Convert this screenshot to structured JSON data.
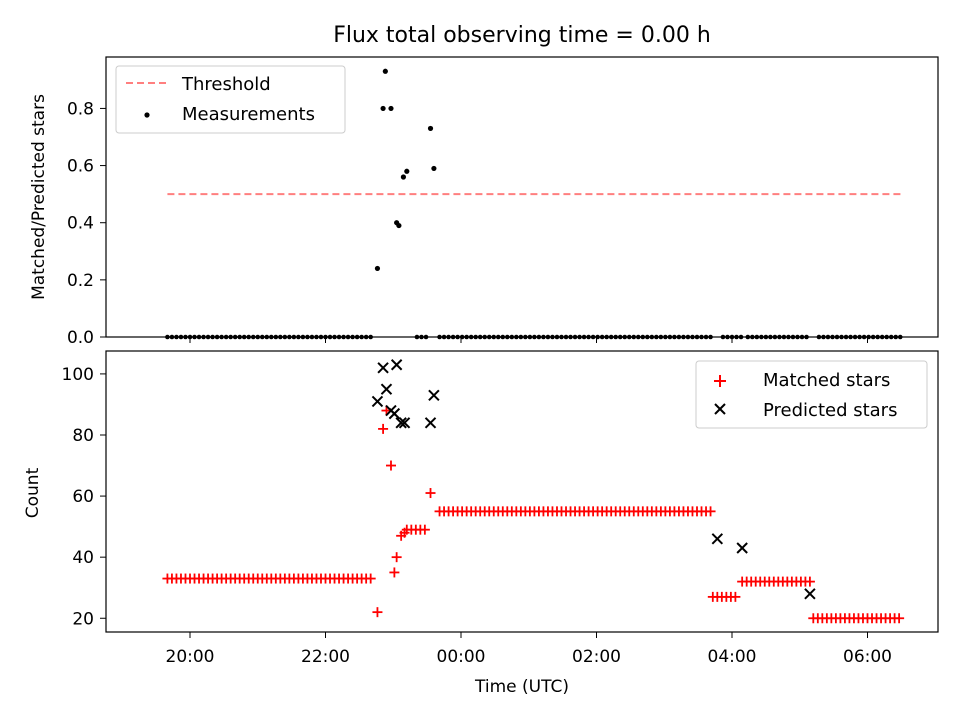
{
  "chart_data": [
    {
      "type": "scatter",
      "title": "Flux total observing time = 0.00 h",
      "xlabel": "",
      "ylabel": "Matched/Predicted stars",
      "ylim": [
        0,
        0.98
      ],
      "yticks": [
        "0.0",
        "0.2",
        "0.4",
        "0.6",
        "0.8"
      ],
      "ytick_values": [
        0,
        0.2,
        0.4,
        0.6,
        0.8
      ],
      "grid": false,
      "legend": "upper-left",
      "threshold": {
        "name": "Threshold",
        "y": 0.5,
        "color": "#ff7f7f",
        "x_range": [
          "19:40",
          "06:30"
        ]
      },
      "series": [
        {
          "name": "Measurements",
          "color": "#000000",
          "x": [
            "22:46",
            "22:51",
            "22:53",
            "22:58",
            "23:03",
            "23:05",
            "23:09",
            "23:12",
            "23:33",
            "23:36"
          ],
          "y": [
            0.24,
            0.8,
            0.93,
            0.8,
            0.4,
            0.39,
            0.56,
            0.58,
            0.73,
            0.59
          ]
        }
      ],
      "zero_segments": [
        [
          "19:40",
          "22:41"
        ],
        [
          "23:21",
          "23:29"
        ],
        [
          "23:41",
          "03:43"
        ],
        [
          "03:52",
          "04:09"
        ],
        [
          "04:14",
          "05:09"
        ],
        [
          "05:17",
          "06:30"
        ]
      ]
    },
    {
      "type": "scatter",
      "title": "",
      "xlabel": "Time (UTC)",
      "ylabel": "Count",
      "ylim": [
        15.5,
        107.5
      ],
      "yticks": [
        "20",
        "40",
        "60",
        "80",
        "100"
      ],
      "ytick_values": [
        20,
        40,
        60,
        80,
        100
      ],
      "xticks": [
        "20:00",
        "22:00",
        "00:00",
        "02:00",
        "04:00",
        "06:00"
      ],
      "xtick_times": [
        "20:00",
        "22:00",
        "24:00",
        "26:00",
        "28:00",
        "30:00"
      ],
      "grid": false,
      "legend": "upper-right",
      "series": [
        {
          "name": "Matched stars",
          "marker": "plus",
          "color": "#ff0000",
          "runs": [
            {
              "start": "19:40",
              "end": "22:41",
              "y": 33
            },
            {
              "start": "23:12",
              "end": "23:29",
              "y": 49
            },
            {
              "start": "23:41",
              "end": "03:43",
              "y": 55
            },
            {
              "start": "03:43",
              "end": "04:04",
              "y": 27
            },
            {
              "start": "04:09",
              "end": "05:09",
              "y": 32
            },
            {
              "start": "05:12",
              "end": "06:30",
              "y": 20
            }
          ],
          "x": [
            "22:46",
            "22:51",
            "22:54",
            "22:58",
            "23:01",
            "23:03",
            "23:07",
            "23:10",
            "23:33"
          ],
          "y": [
            22,
            82,
            88,
            70,
            35,
            40,
            47,
            48,
            61
          ]
        },
        {
          "name": "Predicted stars",
          "marker": "x",
          "color": "#000000",
          "x": [
            "22:46",
            "22:51",
            "22:54",
            "22:58",
            "23:01",
            "23:03",
            "23:07",
            "23:10",
            "23:33",
            "23:36",
            "03:47",
            "04:09",
            "05:09"
          ],
          "y": [
            91,
            102,
            95,
            88,
            87,
            103,
            84,
            84,
            84,
            93,
            46,
            43,
            28
          ]
        }
      ]
    }
  ]
}
